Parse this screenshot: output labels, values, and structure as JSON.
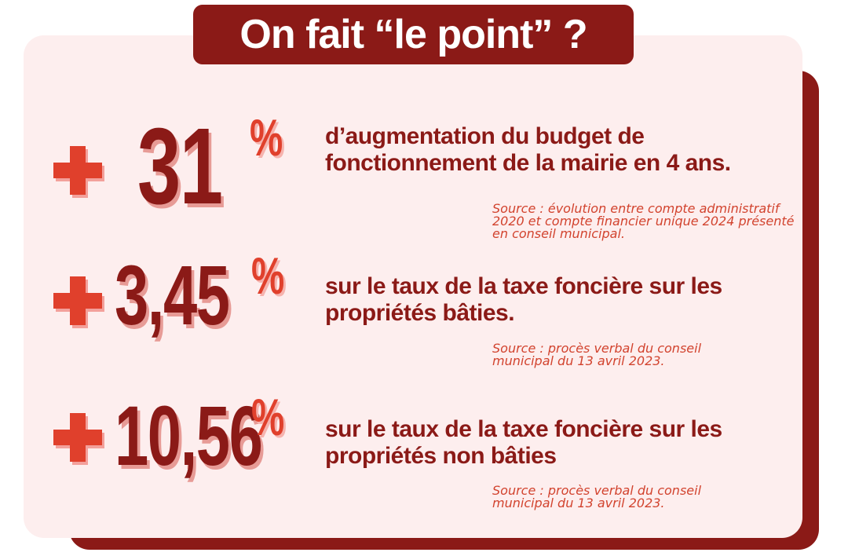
{
  "title": "On fait “le point” ?",
  "colors": {
    "dark_red": "#8b1a17",
    "accent_red": "#e0402c",
    "card_bg": "#fdeeee"
  },
  "stats": [
    {
      "sign_icon": "plus-icon",
      "value": "31",
      "unit": "%",
      "description": "d’augmentation du budget de fonctionnement de la mairie en 4 ans.",
      "source": "Source : évolution entre compte administratif 2020 et compte financier unique 2024 présenté en conseil municipal."
    },
    {
      "sign_icon": "plus-icon",
      "value": "3,45",
      "unit": "%",
      "description": "sur le taux de la taxe foncière sur les propriétés bâties.",
      "source": "Source : procès verbal du conseil municipal du 13 avril 2023."
    },
    {
      "sign_icon": "plus-icon",
      "value": "10,56",
      "unit": "%",
      "description": "sur le taux de la taxe foncière sur les propriétés non bâties",
      "source": "Source : procès verbal du conseil municipal du 13 avril 2023."
    }
  ]
}
